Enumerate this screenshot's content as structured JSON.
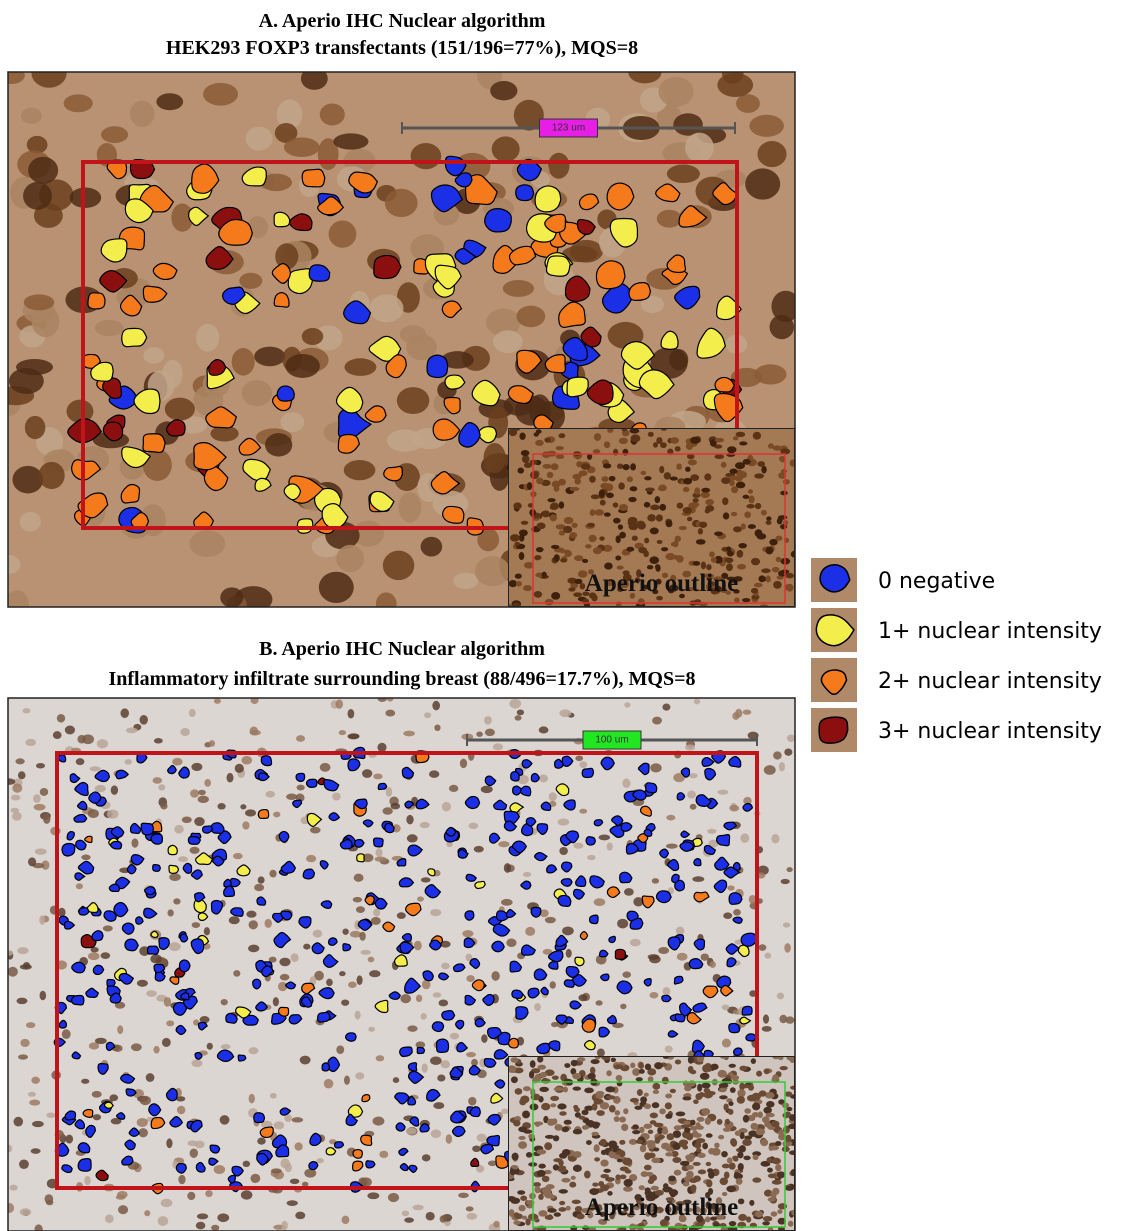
{
  "panels": [
    {
      "title": "A.  Aperio IHC Nuclear algorithm",
      "subtitle": "HEK293 FOXP3 transfectants (151/196=77%), MQS=8",
      "scale_label": "123 um",
      "inset_label": "Aperio outline"
    },
    {
      "title": "B.  Aperio IHC Nuclear algorithm",
      "subtitle": "Inflammatory infiltrate surrounding breast (88/496=17.7%), MQS=8",
      "scale_label": "100 um",
      "inset_label": "Aperio outline"
    }
  ],
  "legend": [
    {
      "label": "0 negative"
    },
    {
      "label": "1+ nuclear intensity"
    },
    {
      "label": "2+ nuclear intensity"
    },
    {
      "label": "3+ nuclear intensity"
    }
  ]
}
